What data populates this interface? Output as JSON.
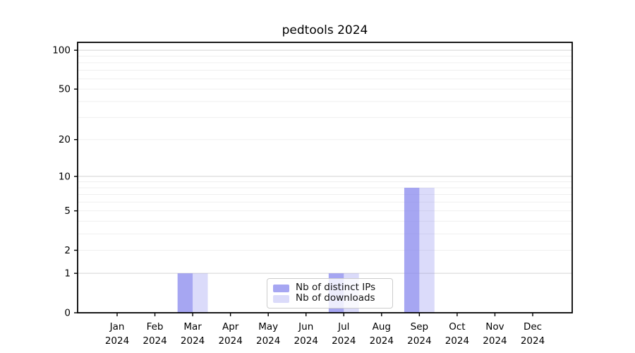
{
  "title": "pedtools 2024",
  "chart_data": {
    "type": "bar",
    "title": "pedtools 2024",
    "categories": [
      "Jan 2024",
      "Feb 2024",
      "Mar 2024",
      "Apr 2024",
      "May 2024",
      "Jun 2024",
      "Jul 2024",
      "Aug 2024",
      "Sep 2024",
      "Oct 2024",
      "Nov 2024",
      "Dec 2024"
    ],
    "series": [
      {
        "name": "Nb of distinct IPs",
        "color": "#8888ee",
        "opacity": 0.75,
        "values": [
          0,
          0,
          1,
          0,
          0,
          0,
          1,
          0,
          8,
          0,
          0,
          0
        ]
      },
      {
        "name": "Nb of downloads",
        "color": "#8888ee",
        "opacity": 0.3,
        "values": [
          0,
          0,
          1,
          0,
          0,
          0,
          1,
          0,
          8,
          0,
          0,
          0
        ]
      }
    ],
    "xlabel": "",
    "ylabel": "",
    "yscale": "log1p",
    "ylim": [
      0,
      115
    ],
    "yticks": [
      0,
      1,
      2,
      5,
      10,
      20,
      50,
      100
    ],
    "major_gridlines": [
      1,
      10,
      100
    ],
    "minor_gridlines": [
      2,
      3,
      4,
      5,
      6,
      7,
      8,
      9,
      20,
      30,
      40,
      50,
      60,
      70,
      80,
      90
    ],
    "grid": true,
    "legend_position": "lower center"
  },
  "colors": {
    "grid_major": "#d4d4d4",
    "grid_minor": "#efefef",
    "axis_frame": "#000000",
    "legend_border": "#cccccc",
    "background": "#ffffff"
  }
}
